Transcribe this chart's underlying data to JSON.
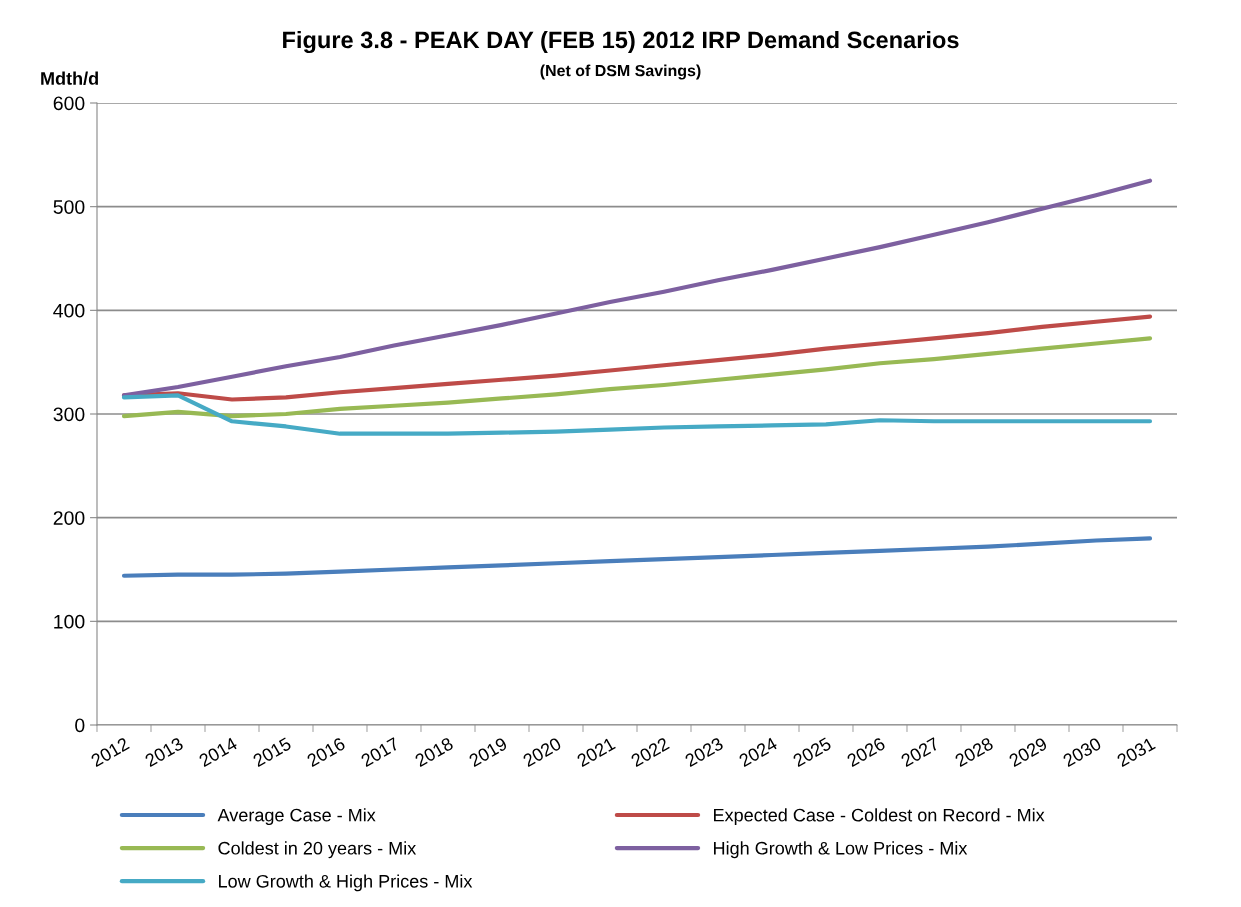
{
  "chart_data": {
    "type": "line",
    "title": "Figure 3.8 - PEAK DAY (FEB 15) 2012 IRP Demand Scenarios",
    "subtitle": "(Net of DSM Savings)",
    "ylabel": "Mdth/d",
    "categories": [
      "2012",
      "2013",
      "2014",
      "2015",
      "2016",
      "2017",
      "2018",
      "2019",
      "2020",
      "2021",
      "2022",
      "2023",
      "2024",
      "2025",
      "2026",
      "2027",
      "2028",
      "2029",
      "2030",
      "2031"
    ],
    "series": [
      {
        "name": "Average Case - Mix",
        "color": "#4a7ebb",
        "values": [
          144,
          145,
          145,
          146,
          148,
          150,
          152,
          154,
          156,
          158,
          160,
          162,
          164,
          166,
          168,
          170,
          172,
          175,
          178,
          180
        ]
      },
      {
        "name": "Expected Case - Coldest on Record - Mix",
        "color": "#be4b48",
        "values": [
          318,
          320,
          314,
          316,
          321,
          325,
          329,
          333,
          337,
          342,
          347,
          352,
          357,
          363,
          368,
          373,
          378,
          384,
          389,
          394
        ]
      },
      {
        "name": "Coldest in 20 years - Mix",
        "color": "#98b954",
        "values": [
          298,
          302,
          298,
          300,
          305,
          308,
          311,
          315,
          319,
          324,
          328,
          333,
          338,
          343,
          349,
          353,
          358,
          363,
          368,
          373
        ]
      },
      {
        "name": "High Growth & Low Prices - Mix",
        "color": "#7d60a0",
        "values": [
          318,
          326,
          336,
          346,
          355,
          366,
          376,
          386,
          397,
          408,
          418,
          429,
          439,
          450,
          461,
          473,
          485,
          498,
          511,
          525
        ]
      },
      {
        "name": "Low Growth & High Prices - Mix",
        "color": "#46aac5",
        "values": [
          316,
          318,
          293,
          288,
          281,
          281,
          281,
          282,
          283,
          285,
          287,
          288,
          289,
          290,
          294,
          293,
          293,
          293,
          293,
          293
        ]
      }
    ],
    "ylim": [
      0,
      600
    ],
    "yticks": [
      0,
      100,
      200,
      300,
      400,
      500,
      600
    ],
    "grid": "y",
    "legend": "bottom",
    "marker": "none",
    "line_style": "solid"
  }
}
